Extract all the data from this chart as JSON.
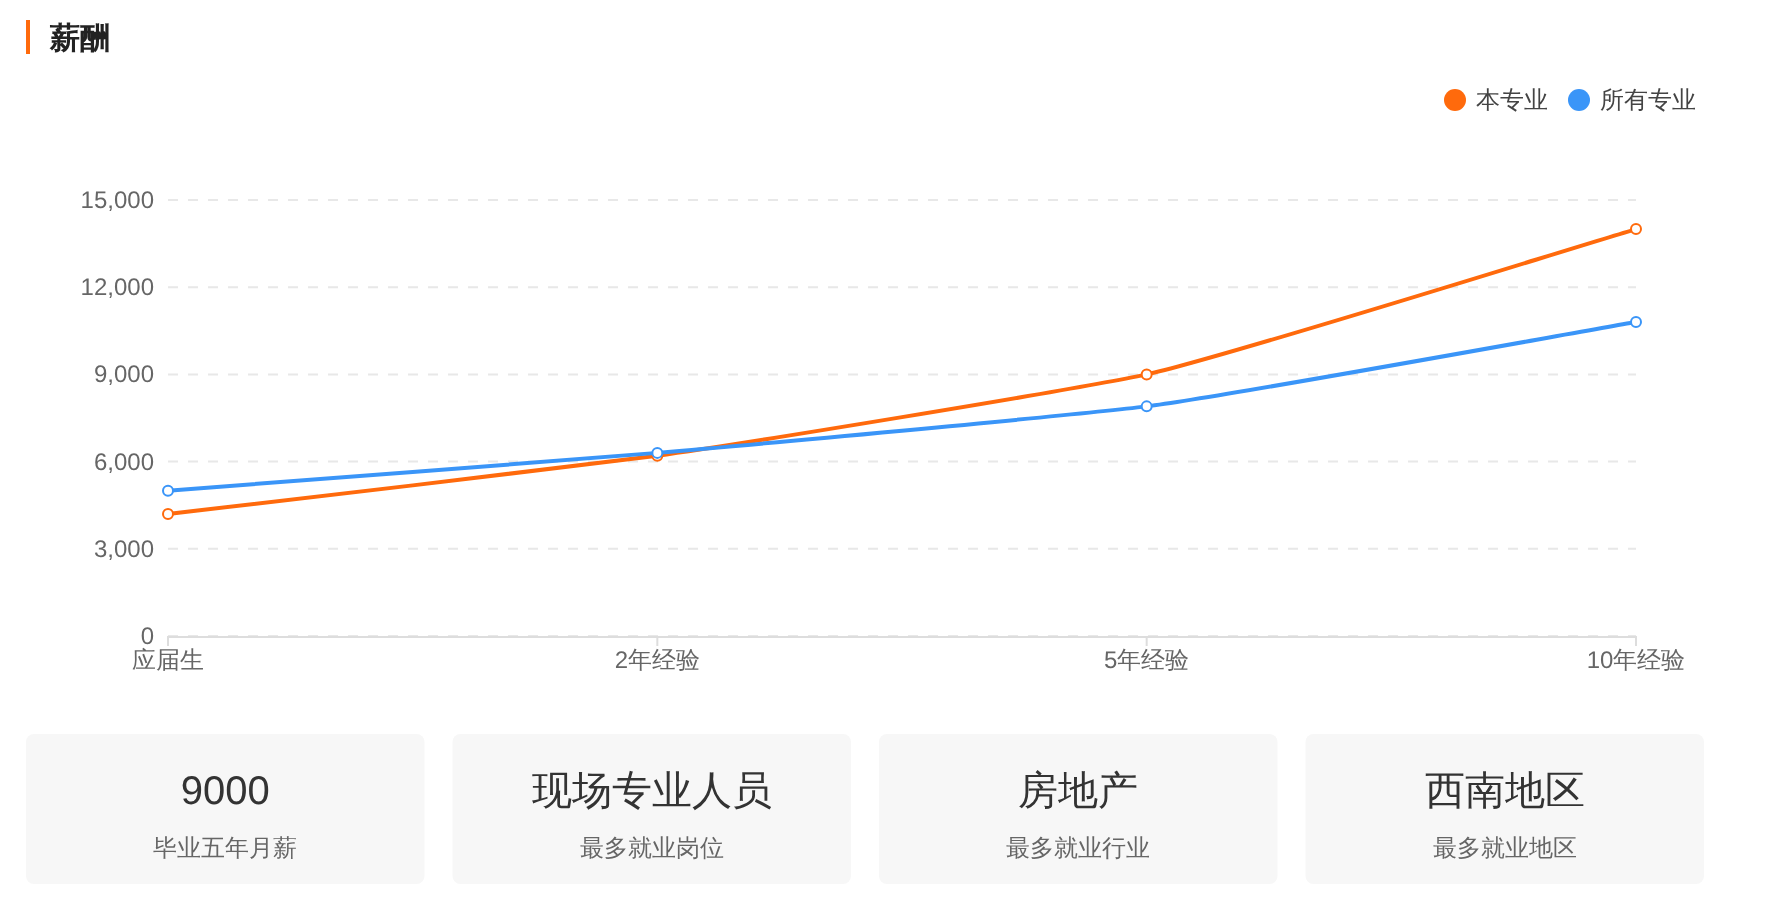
{
  "chart_data": [
    {
      "type": "line",
      "title": "薪酬",
      "categories": [
        "应届生",
        "2年经验",
        "5年经验",
        "10年经验"
      ],
      "series": [
        {
          "name": "本专业",
          "color": "#ff6a0c",
          "values": [
            4200,
            6200,
            9000,
            14000
          ]
        },
        {
          "name": "所有专业",
          "color": "#3a95f8",
          "values": [
            5000,
            6300,
            7900,
            10800
          ]
        }
      ],
      "ylim": [
        0,
        15000
      ],
      "yticks": [
        0,
        {
          "value": 3000,
          "label": "3,000"
        },
        {
          "value": 6000,
          "label": "6,000"
        },
        {
          "value": 9000,
          "label": "9,000"
        },
        {
          "value": 12000,
          "label": "12,000"
        },
        {
          "value": 15000,
          "label": "15,000"
        }
      ],
      "grid": "y",
      "legend": "top right",
      "marker": "circle"
    },
    {
      "type": "other",
      "title": "9000",
      "subtitle": "毕业五年月薪"
    },
    {
      "type": "other",
      "title": "现场专业人员",
      "subtitle": "最多就业岗位"
    },
    {
      "type": "other",
      "title": "房地产",
      "subtitle": "最多就业行业"
    },
    {
      "type": "other",
      "title": "西南地区",
      "subtitle": "最多就业地区"
    }
  ]
}
